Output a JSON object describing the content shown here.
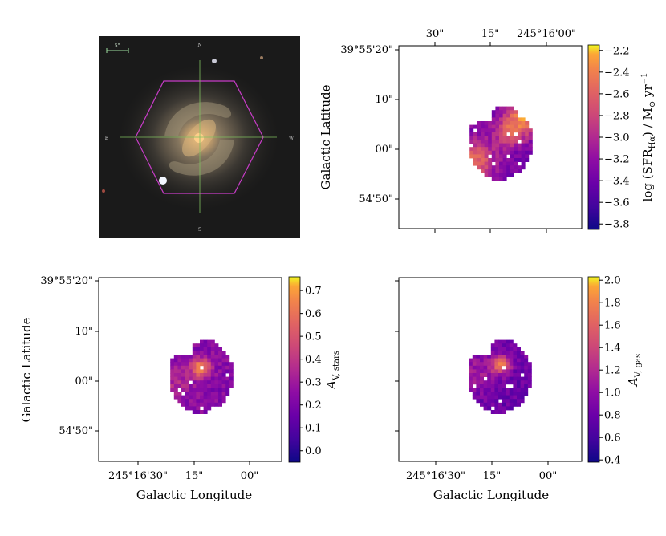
{
  "chart_data": [
    {
      "type": "image",
      "panel": "top-left",
      "title": "",
      "compass": {
        "north": "N",
        "south": "S",
        "east": "E",
        "west": "W"
      },
      "scale_bar_label": "5\"",
      "overlay": "hexagonal IFU footprint with crosshair on galaxy centre",
      "colors": {
        "hexagon": "#c83cc8",
        "crosshair": "#7fbf5f",
        "scale_bar": "#9fe0a0"
      }
    },
    {
      "type": "heatmap",
      "panel": "top-right",
      "xlabel": "",
      "ylabel": "Galactic Latitude",
      "x_ticks": [
        "30\"",
        "15\"",
        "245°16'00\""
      ],
      "x_ticks_position": "top",
      "y_ticks": [
        "39°55'20\"",
        "10\"",
        "00\"",
        "54'50\""
      ],
      "colorbar": {
        "label": "log (SFR",
        "label_sub": "Hα",
        "label_tail": ") / M",
        "label_sun": "⊙",
        "label_end": " yr",
        "label_exp": "−1",
        "range": [
          -3.85,
          -2.15
        ],
        "ticks": [
          "−2.2",
          "−2.4",
          "−2.6",
          "−2.8",
          "−3.0",
          "−3.2",
          "−3.4",
          "−3.6",
          "−3.8"
        ],
        "tick_values": [
          -2.2,
          -2.4,
          -2.6,
          -2.8,
          -3.0,
          -3.2,
          -3.4,
          -3.6,
          -3.8
        ],
        "colormap": "plasma"
      }
    },
    {
      "type": "heatmap",
      "panel": "bottom-left",
      "xlabel": "Galactic Longitude",
      "ylabel": "Galactic Latitude",
      "x_ticks": [
        "245°16'30\"",
        "15\"",
        "00\""
      ],
      "y_ticks": [
        "39°55'20\"",
        "10\"",
        "00\"",
        "54'50\""
      ],
      "colorbar": {
        "label": "A",
        "label_sub": "V, stars",
        "range": [
          -0.05,
          0.76
        ],
        "ticks": [
          "0.7",
          "0.6",
          "0.5",
          "0.4",
          "0.3",
          "0.2",
          "0.1",
          "0.0"
        ],
        "tick_values": [
          0.7,
          0.6,
          0.5,
          0.4,
          0.3,
          0.2,
          0.1,
          0.0
        ],
        "colormap": "plasma"
      }
    },
    {
      "type": "heatmap",
      "panel": "bottom-right",
      "xlabel": "Galactic Longitude",
      "ylabel": "",
      "x_ticks": [
        "245°16'30\"",
        "15\"",
        "00\""
      ],
      "y_ticks": [],
      "colorbar": {
        "label": "A",
        "label_sub": "V, gas",
        "range": [
          0.38,
          2.03
        ],
        "ticks": [
          "2.0",
          "1.8",
          "1.6",
          "1.4",
          "1.2",
          "1.0",
          "0.8",
          "0.6",
          "0.4"
        ],
        "tick_values": [
          2.0,
          1.8,
          1.6,
          1.4,
          1.2,
          1.0,
          0.8,
          0.6,
          0.4
        ],
        "colormap": "plasma"
      }
    }
  ]
}
